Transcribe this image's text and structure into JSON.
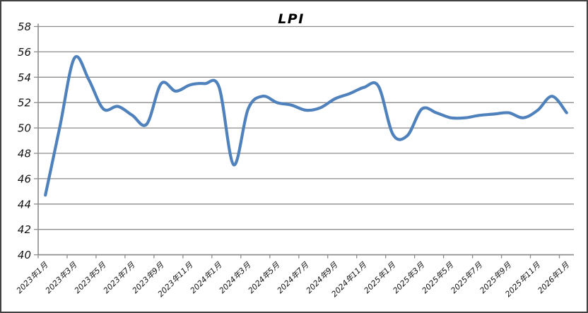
{
  "chart_data": {
    "type": "line",
    "title": "LPI",
    "xlabel": "",
    "ylabel": "",
    "ylim": [
      40,
      58
    ],
    "yticks": [
      58,
      56,
      54,
      52,
      50,
      48,
      46,
      44,
      42,
      40
    ],
    "grid": "horizontal",
    "legend_position": "none",
    "smooth_line": true,
    "x": [
      "2023年1月",
      "2023年2月",
      "2023年3月",
      "2023年4月",
      "2023年5月",
      "2023年6月",
      "2023年7月",
      "2023年8月",
      "2023年9月",
      "2023年10月",
      "2023年11月",
      "2023年12月",
      "2024年1月",
      "2024年2月",
      "2024年3月",
      "2024年4月",
      "2024年5月",
      "2024年6月",
      "2024年7月",
      "2024年8月",
      "2024年9月",
      "2024年10月",
      "2024年11月",
      "2024年12月",
      "2025年1月",
      "2025年2月",
      "2025年3月",
      "2025年4月",
      "2025年5月",
      "2025年6月",
      "2025年7月",
      "2025年8月",
      "2025年9月",
      "2025年10月",
      "2025年11月",
      "2025年12月",
      "2026年1月"
    ],
    "xtick_labels": [
      "2023年1月",
      "2023年3月",
      "2023年5月",
      "2023年7月",
      "2023年9月",
      "2023年11月",
      "2024年1月",
      "2024年3月",
      "2024年5月",
      "2024年7月",
      "2024年9月",
      "2024年11月",
      "2025年1月",
      "2025年3月",
      "2025年5月",
      "2025年7月",
      "2025年9月",
      "2025年11月",
      "2026年1月"
    ],
    "series": [
      {
        "name": "LPI",
        "color": "#4F81BD",
        "values": [
          44.7,
          50.1,
          55.5,
          53.8,
          51.5,
          51.7,
          51.0,
          50.3,
          53.5,
          52.9,
          53.4,
          53.5,
          53.2,
          47.1,
          51.5,
          52.5,
          52.0,
          51.8,
          51.4,
          51.6,
          52.3,
          52.7,
          53.2,
          53.3,
          49.5,
          49.4,
          51.5,
          51.2,
          50.8,
          50.8,
          51.0,
          51.1,
          51.2,
          50.8,
          51.4,
          52.5,
          51.2
        ]
      }
    ]
  },
  "style": {
    "background": "#FFFFFF",
    "frame_border_color": "#424242",
    "grid_color": "#8C8C8C",
    "axis_color": "#8C8C8C",
    "tick_label_color": "#141414",
    "title_color": "#000000",
    "line_color": "#4F81BD"
  }
}
